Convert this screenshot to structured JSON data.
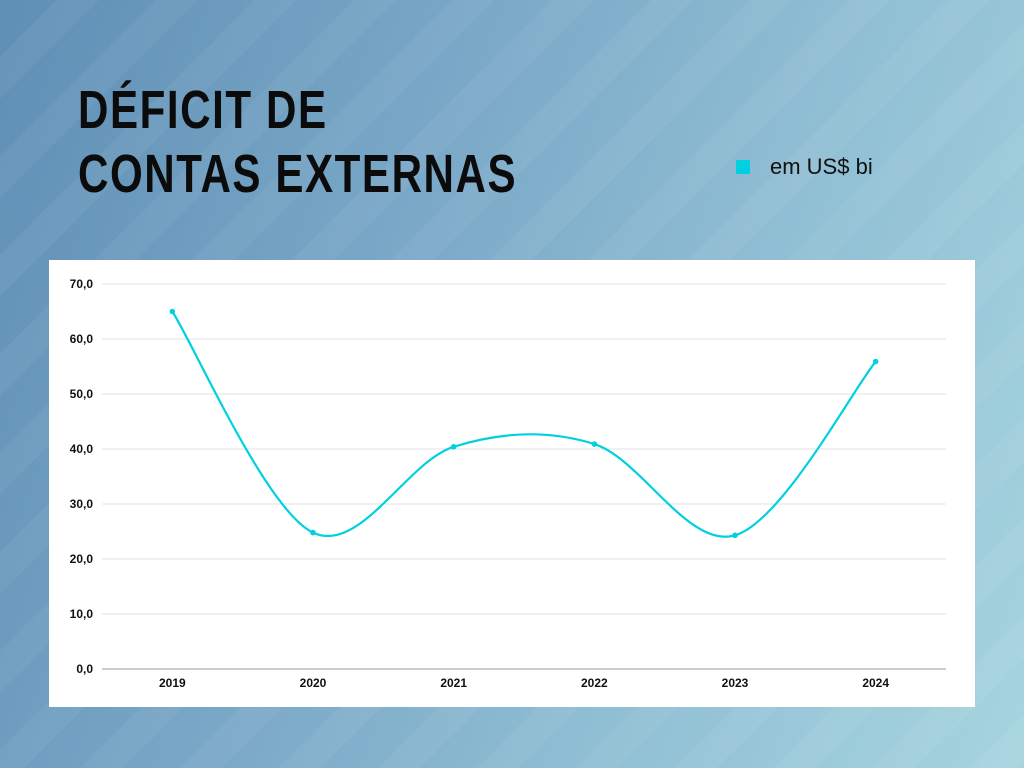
{
  "title_lines": [
    "DÉFICIT DE",
    "CONTAS EXTERNAS"
  ],
  "legend": {
    "label": "em US$ bi",
    "color": "#00d0e0"
  },
  "chart_data": {
    "type": "line",
    "title": "DÉFICIT DE CONTAS EXTERNAS",
    "xlabel": "",
    "ylabel": "",
    "categories": [
      "2019",
      "2020",
      "2021",
      "2022",
      "2023",
      "2024"
    ],
    "series": [
      {
        "name": "em US$ bi",
        "values": [
          65.0,
          24.8,
          40.4,
          40.9,
          24.3,
          55.9
        ],
        "color": "#00d0e0"
      }
    ],
    "ylim": [
      0,
      70
    ],
    "yticks": [
      "0,0",
      "10,0",
      "20,0",
      "30,0",
      "40,0",
      "50,0",
      "60,0",
      "70,0"
    ],
    "grid": true,
    "smooth": true,
    "legend_position": "top-right"
  }
}
